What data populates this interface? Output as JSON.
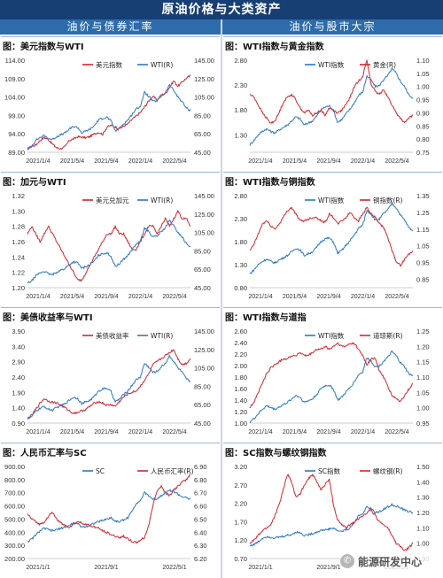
{
  "header": {
    "title": "原油价格与大类资产",
    "left_section": "油价与债券汇率",
    "right_section": "油价与股市大宗"
  },
  "watermark": {
    "text": "能源研发中心",
    "icon": "wechat-icon"
  },
  "colors": {
    "blue": "#2e78c5",
    "red": "#d22630",
    "header": "#173f73",
    "subheader": "#2e6bab"
  },
  "chart_data": [
    {
      "id": "usd-wti",
      "type": "line",
      "title": "图：美元指数与WTI",
      "x_ticks": [
        "2021/1/4",
        "2021/5/4",
        "2021/9/4",
        "2022/1/4",
        "2022/5/4"
      ],
      "left_axis": {
        "ticks": [
          "89.00",
          "94.00",
          "99.00",
          "104.00",
          "109.00",
          "114.00"
        ],
        "range": [
          89,
          114
        ]
      },
      "right_axis": {
        "ticks": [
          "45.00",
          "65.00",
          "85.00",
          "105.00",
          "125.00",
          "145.00"
        ],
        "range": [
          45,
          145
        ]
      },
      "series": [
        {
          "name": "美元指数",
          "axis": "left",
          "color": "#d22630",
          "values": [
            89.9,
            90.6,
            91.0,
            92.2,
            93.0,
            92.5,
            91.2,
            90.2,
            90.0,
            90.5,
            92.2,
            92.6,
            93.2,
            93.1,
            92.9,
            93.3,
            94.0,
            94.4,
            93.9,
            95.8,
            96.3,
            95.9,
            95.4,
            96.1,
            96.7,
            97.9,
            98.8,
            99.8,
            101.3,
            102.9,
            104.2,
            103.1,
            104.6,
            104.9,
            106.7,
            108.4,
            106.9,
            108.1,
            109.1,
            109.8
          ]
        },
        {
          "name": "WTI(R)",
          "axis": "right",
          "color": "#2e78c5",
          "values": [
            48,
            52,
            58,
            61,
            63,
            60,
            59,
            62,
            64,
            66,
            70,
            73,
            72,
            66,
            68,
            70,
            74,
            80,
            82,
            83,
            79,
            68,
            71,
            76,
            80,
            86,
            92,
            95,
            110,
            106,
            100,
            101,
            106,
            110,
            118,
            112,
            105,
            100,
            93,
            90
          ]
        }
      ]
    },
    {
      "id": "wti-gold",
      "type": "line",
      "title": "图：WTI指数与黄金指数",
      "x_ticks": [
        "2021/1/4",
        "2021/5/4",
        "2021/9/4",
        "2022/1/4",
        "2022/5/4"
      ],
      "left_axis": {
        "ticks": [
          "1.30",
          "1.80",
          "2.30",
          "2.80"
        ],
        "range": [
          0.95,
          2.8
        ]
      },
      "right_axis": {
        "ticks": [
          "0.75",
          "0.80",
          "0.85",
          "0.90",
          "0.95",
          "1.00",
          "1.05",
          "1.10"
        ],
        "range": [
          0.75,
          1.1
        ]
      },
      "series": [
        {
          "name": "WTI指数",
          "axis": "left",
          "color": "#2e78c5",
          "values": [
            1.1,
            1.19,
            1.3,
            1.37,
            1.42,
            1.37,
            1.34,
            1.4,
            1.45,
            1.5,
            1.58,
            1.66,
            1.62,
            1.5,
            1.54,
            1.58,
            1.68,
            1.8,
            1.86,
            1.88,
            1.79,
            1.55,
            1.61,
            1.72,
            1.82,
            1.95,
            2.09,
            2.16,
            2.48,
            2.4,
            2.27,
            2.29,
            2.41,
            2.49,
            2.63,
            2.54,
            2.38,
            2.27,
            2.11,
            2.04
          ]
        },
        {
          "name": "黄金(R)",
          "axis": "right",
          "color": "#d22630",
          "values": [
            0.97,
            0.96,
            0.93,
            0.9,
            0.88,
            0.86,
            0.87,
            0.9,
            0.94,
            0.96,
            0.97,
            0.95,
            0.92,
            0.9,
            0.91,
            0.89,
            0.9,
            0.91,
            0.89,
            0.92,
            0.91,
            0.9,
            0.91,
            0.93,
            0.96,
            1.0,
            1.02,
            1.04,
            1.1,
            1.01,
            0.98,
            0.97,
            0.99,
            0.96,
            0.93,
            0.9,
            0.88,
            0.86,
            0.88,
            0.89
          ]
        }
      ]
    },
    {
      "id": "cad-wti",
      "type": "line",
      "title": "图：加元与WTI",
      "x_ticks": [
        "2021/1/4",
        "2021/5/4",
        "2021/9/4",
        "2022/1/4",
        "2022/5/4"
      ],
      "left_axis": {
        "ticks": [
          "1.20",
          "1.22",
          "1.24",
          "1.26",
          "1.28",
          "1.30",
          "1.32"
        ],
        "range": [
          1.2,
          1.32
        ]
      },
      "right_axis": {
        "ticks": [
          "45.00",
          "65.00",
          "85.00",
          "105.00",
          "125.00",
          "145.00"
        ],
        "range": [
          45,
          145
        ]
      },
      "series": [
        {
          "name": "美元兑加元",
          "axis": "left",
          "color": "#d22630",
          "values": [
            1.27,
            1.28,
            1.27,
            1.26,
            1.27,
            1.28,
            1.27,
            1.26,
            1.25,
            1.24,
            1.23,
            1.22,
            1.21,
            1.21,
            1.22,
            1.23,
            1.24,
            1.25,
            1.26,
            1.27,
            1.27,
            1.28,
            1.27,
            1.27,
            1.26,
            1.25,
            1.25,
            1.26,
            1.27,
            1.28,
            1.28,
            1.27,
            1.28,
            1.29,
            1.28,
            1.29,
            1.3,
            1.29,
            1.29,
            1.28
          ]
        },
        {
          "name": "WTI(R)",
          "axis": "right",
          "color": "#2e78c5",
          "values": [
            50,
            52,
            58,
            61,
            63,
            60,
            59,
            62,
            64,
            66,
            70,
            73,
            72,
            66,
            68,
            70,
            74,
            80,
            82,
            83,
            79,
            68,
            71,
            76,
            80,
            86,
            92,
            95,
            110,
            106,
            100,
            101,
            106,
            110,
            118,
            112,
            105,
            100,
            93,
            90
          ]
        }
      ]
    },
    {
      "id": "wti-copper",
      "type": "line",
      "title": "图：WTI指数与铜指数",
      "x_ticks": [
        "2021/1/4",
        "2021/5/4",
        "2021/9/4",
        "2022/1/4",
        "2022/5/4"
      ],
      "left_axis": {
        "ticks": [
          "0.80",
          "1.30",
          "1.80",
          "2.30",
          "2.80"
        ],
        "range": [
          0.8,
          2.8
        ]
      },
      "right_axis": {
        "ticks": [
          "0.85",
          "0.95",
          "1.05",
          "1.15",
          "1.25",
          "1.35"
        ],
        "range": [
          0.8,
          1.35
        ]
      },
      "series": [
        {
          "name": "WTI指数",
          "axis": "left",
          "color": "#2e78c5",
          "values": [
            1.1,
            1.19,
            1.3,
            1.37,
            1.42,
            1.37,
            1.34,
            1.4,
            1.45,
            1.5,
            1.58,
            1.66,
            1.62,
            1.5,
            1.54,
            1.58,
            1.68,
            1.8,
            1.86,
            1.88,
            1.79,
            1.55,
            1.61,
            1.72,
            1.82,
            1.95,
            2.09,
            2.16,
            2.48,
            2.4,
            2.27,
            2.29,
            2.41,
            2.49,
            2.63,
            2.54,
            2.38,
            2.27,
            2.11,
            2.04
          ]
        },
        {
          "name": "铜指数(R)",
          "axis": "right",
          "color": "#d22630",
          "values": [
            1.02,
            1.06,
            1.12,
            1.18,
            1.2,
            1.17,
            1.15,
            1.18,
            1.22,
            1.26,
            1.28,
            1.24,
            1.2,
            1.2,
            1.21,
            1.22,
            1.22,
            1.2,
            1.19,
            1.24,
            1.22,
            1.18,
            1.2,
            1.22,
            1.25,
            1.22,
            1.2,
            1.24,
            1.28,
            1.24,
            1.22,
            1.18,
            1.16,
            1.1,
            1.02,
            0.96,
            0.93,
            0.97,
            1.0,
            1.02
          ]
        }
      ]
    },
    {
      "id": "ust-wti",
      "type": "line",
      "title": "图：美债收益率与WTI",
      "x_ticks": [
        "2021/1/4",
        "2021/5/4",
        "2021/9/4",
        "2022/1/4",
        "2022/5/4"
      ],
      "left_axis": {
        "ticks": [
          "0.90",
          "1.40",
          "1.90",
          "2.40",
          "2.90",
          "3.40",
          "3.90"
        ],
        "range": [
          0.9,
          3.9
        ]
      },
      "right_axis": {
        "ticks": [
          "45.00",
          "65.00",
          "85.00",
          "105.00",
          "125.00",
          "145.00"
        ],
        "range": [
          45,
          145
        ]
      },
      "series": [
        {
          "name": "美债收益率",
          "axis": "left",
          "color": "#d22630",
          "values": [
            1.05,
            1.15,
            1.35,
            1.55,
            1.7,
            1.62,
            1.58,
            1.56,
            1.48,
            1.4,
            1.3,
            1.22,
            1.25,
            1.3,
            1.35,
            1.45,
            1.55,
            1.6,
            1.55,
            1.48,
            1.5,
            1.45,
            1.6,
            1.75,
            1.85,
            1.9,
            1.95,
            2.1,
            2.3,
            2.5,
            2.8,
            2.9,
            3.0,
            3.1,
            3.2,
            3.3,
            3.0,
            2.8,
            2.85,
            3.0
          ]
        },
        {
          "name": "WTI(R)",
          "axis": "right",
          "color": "#2e78c5",
          "values": [
            50,
            52,
            58,
            61,
            63,
            60,
            59,
            62,
            64,
            66,
            70,
            73,
            72,
            66,
            68,
            70,
            74,
            80,
            82,
            83,
            79,
            68,
            71,
            76,
            80,
            86,
            92,
            95,
            110,
            106,
            100,
            101,
            106,
            110,
            118,
            112,
            105,
            100,
            93,
            90
          ]
        }
      ]
    },
    {
      "id": "wti-dowjones",
      "type": "line",
      "title": "图：WTI指数与道指",
      "x_ticks": [
        "2021/1/4",
        "2021/5/4",
        "2021/9/4",
        "2022/1/4",
        "2022/5/4"
      ],
      "left_axis": {
        "ticks": [
          "1.00",
          "1.20",
          "1.40",
          "1.60",
          "1.80",
          "2.00",
          "2.20",
          "2.40",
          "2.60"
        ],
        "range": [
          1.0,
          2.6
        ]
      },
      "right_axis": {
        "ticks": [
          "0.95",
          "1.00",
          "1.05",
          "1.10",
          "1.15",
          "1.20",
          "1.25"
        ],
        "range": [
          0.95,
          1.25
        ]
      },
      "series": [
        {
          "name": "WTI指数",
          "axis": "left",
          "color": "#2e78c5",
          "values": [
            1.02,
            1.08,
            1.16,
            1.24,
            1.3,
            1.27,
            1.24,
            1.28,
            1.32,
            1.36,
            1.42,
            1.48,
            1.45,
            1.36,
            1.39,
            1.42,
            1.5,
            1.6,
            1.65,
            1.66,
            1.59,
            1.4,
            1.45,
            1.54,
            1.62,
            1.72,
            1.84,
            1.89,
            2.14,
            2.08,
            1.98,
            1.99,
            2.08,
            2.14,
            2.24,
            2.17,
            2.05,
            1.98,
            1.86,
            1.82
          ]
        },
        {
          "name": "道琼斯(R)",
          "axis": "right",
          "color": "#d22630",
          "values": [
            1.0,
            1.02,
            1.05,
            1.08,
            1.11,
            1.13,
            1.14,
            1.15,
            1.16,
            1.16,
            1.17,
            1.17,
            1.18,
            1.17,
            1.17,
            1.18,
            1.19,
            1.19,
            1.2,
            1.19,
            1.2,
            1.21,
            1.2,
            1.2,
            1.21,
            1.21,
            1.19,
            1.17,
            1.14,
            1.16,
            1.16,
            1.12,
            1.1,
            1.07,
            1.04,
            1.03,
            1.02,
            1.04,
            1.06,
            1.08
          ]
        }
      ]
    },
    {
      "id": "cny-sc",
      "type": "line",
      "title": "图：人民币汇率与SC",
      "x_ticks": [
        "2021/1/1",
        "2021/9/1",
        "2022/5/1"
      ],
      "left_axis": {
        "ticks": [
          "200.00",
          "300.00",
          "400.00",
          "500.00",
          "600.00",
          "700.00",
          "800.00",
          "900.00"
        ],
        "range": [
          200,
          900
        ]
      },
      "right_axis": {
        "ticks": [
          "6.20",
          "6.30",
          "6.40",
          "6.50",
          "6.60",
          "6.70",
          "6.80",
          "6.90"
        ],
        "range": [
          6.2,
          6.9
        ]
      },
      "series": [
        {
          "name": "SC",
          "axis": "left",
          "color": "#2e78c5",
          "values": [
            330,
            345,
            380,
            410,
            430,
            420,
            410,
            420,
            430,
            440,
            450,
            470,
            465,
            440,
            445,
            455,
            470,
            480,
            490,
            500,
            510,
            485,
            480,
            495,
            510,
            560,
            620,
            640,
            700,
            680,
            650,
            655,
            680,
            700,
            720,
            710,
            690,
            670,
            660,
            650
          ]
        },
        {
          "name": "人民币汇率(R)",
          "axis": "right",
          "color": "#d22630",
          "values": [
            6.54,
            6.5,
            6.48,
            6.46,
            6.48,
            6.52,
            6.55,
            6.5,
            6.47,
            6.45,
            6.44,
            6.46,
            6.48,
            6.47,
            6.46,
            6.45,
            6.44,
            6.43,
            6.41,
            6.4,
            6.38,
            6.37,
            6.36,
            6.37,
            6.35,
            6.33,
            6.32,
            6.34,
            6.36,
            6.45,
            6.6,
            6.72,
            6.75,
            6.7,
            6.68,
            6.72,
            6.75,
            6.78,
            6.8,
            6.84
          ]
        }
      ]
    },
    {
      "id": "sc-rebar",
      "type": "line",
      "title": "图：SC指数与螺纹钢指数",
      "x_ticks": [
        "2021/1/1",
        "2021/9/1",
        "2022/5/1"
      ],
      "left_axis": {
        "ticks": [
          "0.70",
          "1.20",
          "1.70",
          "2.20",
          "2.70",
          "3.20"
        ],
        "range": [
          0.7,
          3.2
        ]
      },
      "right_axis": {
        "ticks": [
          "0.90",
          "1.00",
          "1.10",
          "1.20",
          "1.30",
          "1.40",
          "1.50"
        ],
        "range": [
          0.9,
          1.5
        ]
      },
      "series": [
        {
          "name": "SC指数",
          "axis": "left",
          "color": "#2e78c5",
          "values": [
            1.05,
            1.08,
            1.15,
            1.25,
            1.3,
            1.28,
            1.26,
            1.28,
            1.3,
            1.33,
            1.35,
            1.42,
            1.4,
            1.33,
            1.35,
            1.38,
            1.42,
            1.46,
            1.48,
            1.5,
            1.53,
            1.45,
            1.44,
            1.48,
            1.53,
            1.68,
            1.86,
            1.92,
            2.1,
            2.05,
            1.95,
            1.97,
            2.04,
            2.1,
            2.16,
            2.13,
            2.07,
            2.01,
            1.98,
            1.95
          ]
        },
        {
          "name": "螺纹钢(R)",
          "axis": "right",
          "color": "#d22630",
          "values": [
            1.0,
            1.02,
            1.05,
            1.08,
            1.1,
            1.12,
            1.18,
            1.25,
            1.35,
            1.45,
            1.4,
            1.3,
            1.32,
            1.38,
            1.42,
            1.45,
            1.4,
            1.35,
            1.38,
            1.42,
            1.25,
            1.15,
            1.12,
            1.1,
            1.12,
            1.14,
            1.16,
            1.18,
            1.2,
            1.22,
            1.18,
            1.14,
            1.12,
            1.1,
            1.05,
            1.0,
            0.98,
            0.95,
            0.97,
            1.0
          ]
        }
      ]
    }
  ]
}
